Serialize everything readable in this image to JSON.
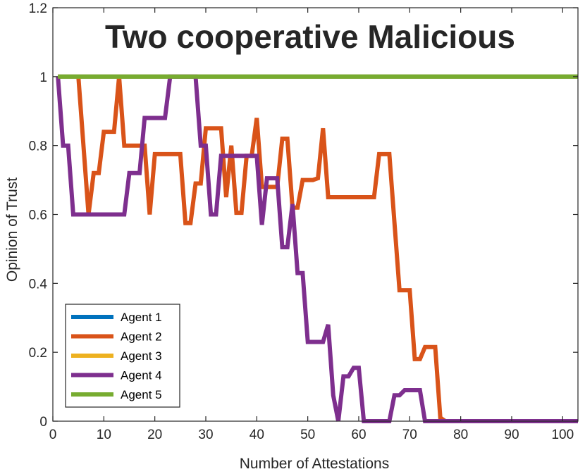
{
  "chart_data": {
    "type": "line",
    "title": "Two cooperative Malicious",
    "xlabel": "Number of Attestations",
    "ylabel": "Opinion of Trust",
    "xlim": [
      0,
      103
    ],
    "ylim": [
      0,
      1.2
    ],
    "xticks": [
      0,
      10,
      20,
      30,
      40,
      50,
      60,
      70,
      80,
      90,
      100
    ],
    "yticks": [
      0,
      0.2,
      0.4,
      0.6,
      0.8,
      1,
      1.2
    ],
    "xtick_labels": [
      "0",
      "10",
      "20",
      "30",
      "40",
      "50",
      "60",
      "70",
      "80",
      "90",
      "100"
    ],
    "ytick_labels": [
      "0",
      "0.2",
      "0.4",
      "0.6",
      "0.8",
      "1",
      "1.2"
    ],
    "grid": false,
    "legend_position": "bottom-left",
    "series": [
      {
        "name": "Agent 1",
        "color": "#0072BD",
        "points": [
          [
            1,
            1
          ],
          [
            103,
            1
          ]
        ]
      },
      {
        "name": "Agent 2",
        "color": "#D95319",
        "points": [
          [
            5,
            1
          ],
          [
            7,
            0.6
          ],
          [
            8,
            0.72
          ],
          [
            9,
            0.72
          ],
          [
            10,
            0.84
          ],
          [
            12,
            0.84
          ],
          [
            13,
            1
          ],
          [
            14,
            0.8
          ],
          [
            17,
            0.8
          ],
          [
            18,
            0.8
          ],
          [
            19,
            0.6
          ],
          [
            20,
            0.775
          ],
          [
            25,
            0.775
          ],
          [
            26,
            0.575
          ],
          [
            27,
            0.575
          ],
          [
            28,
            0.69
          ],
          [
            29,
            0.69
          ],
          [
            30,
            0.85
          ],
          [
            33,
            0.85
          ],
          [
            34,
            0.65
          ],
          [
            35,
            0.8
          ],
          [
            36,
            0.605
          ],
          [
            37,
            0.605
          ],
          [
            38,
            0.77
          ],
          [
            39,
            0.77
          ],
          [
            40,
            0.88
          ],
          [
            41,
            0.68
          ],
          [
            44,
            0.68
          ],
          [
            45,
            0.82
          ],
          [
            46,
            0.82
          ],
          [
            47,
            0.62
          ],
          [
            48,
            0.62
          ],
          [
            49,
            0.7
          ],
          [
            51,
            0.7
          ],
          [
            52,
            0.705
          ],
          [
            53,
            0.85
          ],
          [
            54,
            0.65
          ],
          [
            63,
            0.65
          ],
          [
            64,
            0.775
          ],
          [
            66,
            0.775
          ],
          [
            68,
            0.38
          ],
          [
            70,
            0.38
          ],
          [
            71,
            0.18
          ],
          [
            72,
            0.18
          ],
          [
            73,
            0.215
          ],
          [
            75,
            0.215
          ],
          [
            76,
            0.01
          ],
          [
            77,
            0
          ],
          [
            103,
            0
          ]
        ]
      },
      {
        "name": "Agent 3",
        "color": "#EDB120",
        "points": [
          [
            1,
            1
          ],
          [
            103,
            1
          ]
        ]
      },
      {
        "name": "Agent 4",
        "color": "#7E2F8E",
        "points": [
          [
            1,
            1
          ],
          [
            2,
            0.8
          ],
          [
            3,
            0.8
          ],
          [
            4,
            0.6
          ],
          [
            14,
            0.6
          ],
          [
            15,
            0.72
          ],
          [
            17,
            0.72
          ],
          [
            18,
            0.88
          ],
          [
            22,
            0.88
          ],
          [
            23,
            1
          ],
          [
            28,
            1
          ],
          [
            29,
            0.8
          ],
          [
            30,
            0.8
          ],
          [
            31,
            0.6
          ],
          [
            32,
            0.6
          ],
          [
            33,
            0.77
          ],
          [
            40,
            0.77
          ],
          [
            41,
            0.57
          ],
          [
            42,
            0.705
          ],
          [
            44,
            0.705
          ],
          [
            45,
            0.505
          ],
          [
            46,
            0.505
          ],
          [
            47,
            0.63
          ],
          [
            48,
            0.43
          ],
          [
            49,
            0.43
          ],
          [
            50,
            0.23
          ],
          [
            53,
            0.23
          ],
          [
            54,
            0.28
          ],
          [
            55,
            0.075
          ],
          [
            56,
            0
          ],
          [
            57,
            0.13
          ],
          [
            58,
            0.13
          ],
          [
            59,
            0.155
          ],
          [
            60,
            0.155
          ],
          [
            61,
            0
          ],
          [
            66,
            0
          ],
          [
            67,
            0.075
          ],
          [
            68,
            0.075
          ],
          [
            69,
            0.09
          ],
          [
            72,
            0.09
          ],
          [
            73,
            0
          ],
          [
            103,
            0
          ]
        ]
      },
      {
        "name": "Agent 5",
        "color": "#77AC30",
        "points": [
          [
            1,
            1
          ],
          [
            103,
            1
          ]
        ]
      }
    ]
  }
}
